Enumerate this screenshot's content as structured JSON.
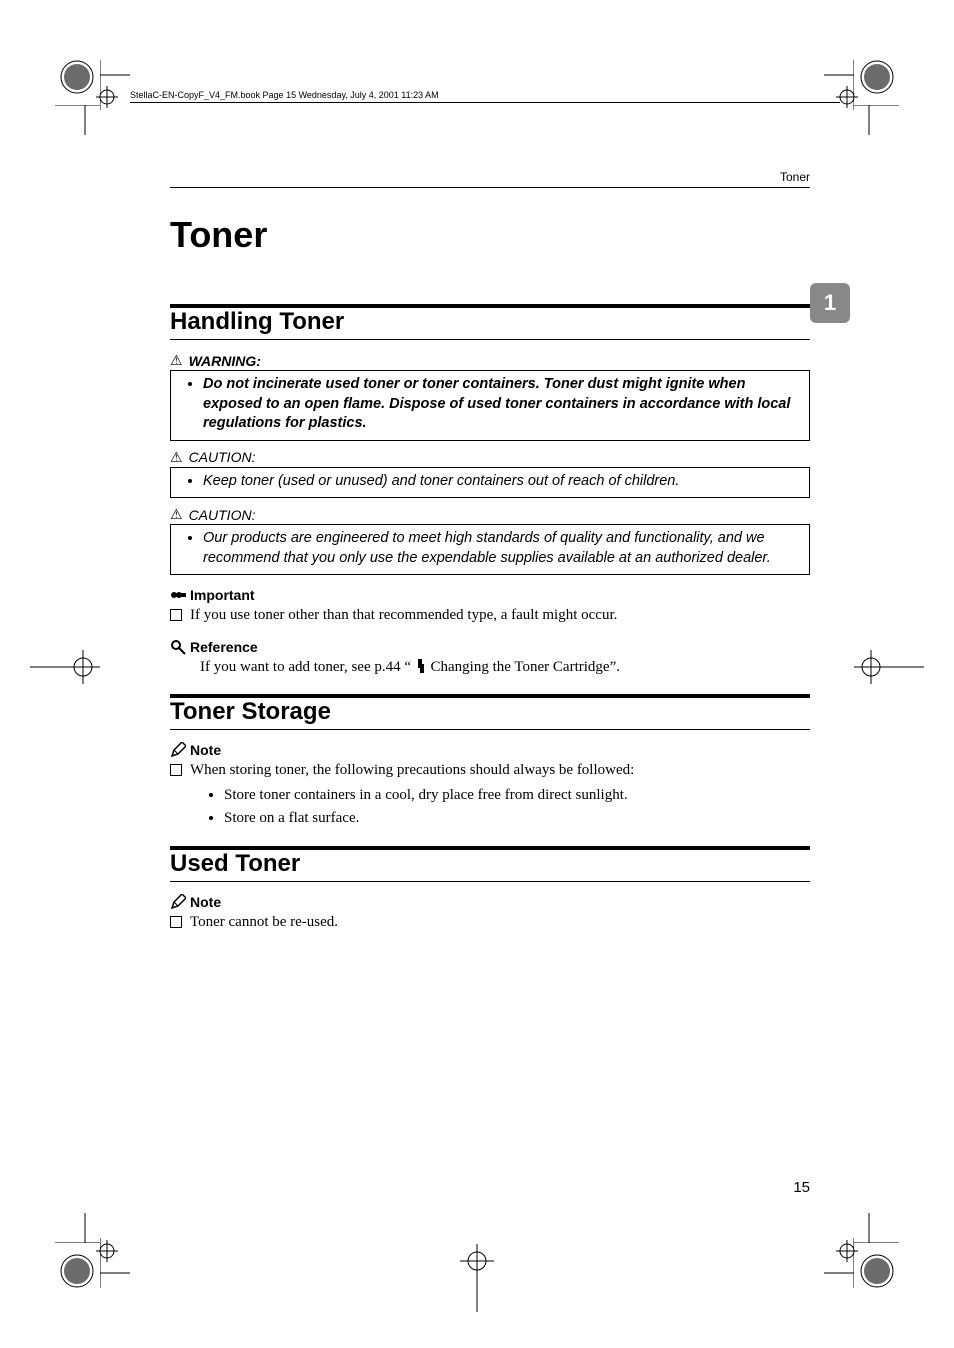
{
  "crop_header": "StellaC-EN-CopyF_V4_FM.book  Page 15  Wednesday, July 4, 2001  11:23 AM",
  "running_head": "Toner",
  "title": "Toner",
  "chapter_chip": "1",
  "page_number": "15",
  "handling": {
    "heading": "Handling Toner",
    "warning_label": "WARNING:",
    "warning_text": "Do not incinerate used toner or toner containers. Toner dust might ignite when exposed to an open flame. Dispose of used toner containers in accordance with local regulations for plastics.",
    "caution_label": "CAUTION:",
    "caution1_text": "Keep toner (used or unused) and toner containers out of reach of children.",
    "caution2_text": "Our products are engineered to meet high standards of quality and functionality, and we recommend that you only use the expendable supplies available at an authorized dealer.",
    "important_label": "Important",
    "important_text": "If you use toner other than that recommended type, a fault might occur.",
    "reference_label": "Reference",
    "reference_text_pre": "If you want to add toner, see p.44 “ ",
    "reference_text_post": "  Changing the Toner Cartridge”."
  },
  "storage": {
    "heading": "Toner Storage",
    "note_label": "Note",
    "intro": "When storing toner, the following precautions should always be followed:",
    "items": [
      "Store toner containers in a cool, dry place free from direct sunlight.",
      "Store on a flat surface."
    ]
  },
  "used": {
    "heading": "Used Toner",
    "note_label": "Note",
    "text": "Toner cannot be re-used."
  },
  "colors": {
    "chip_bg": "#888888",
    "ball_fill": "#6b6b6b"
  }
}
